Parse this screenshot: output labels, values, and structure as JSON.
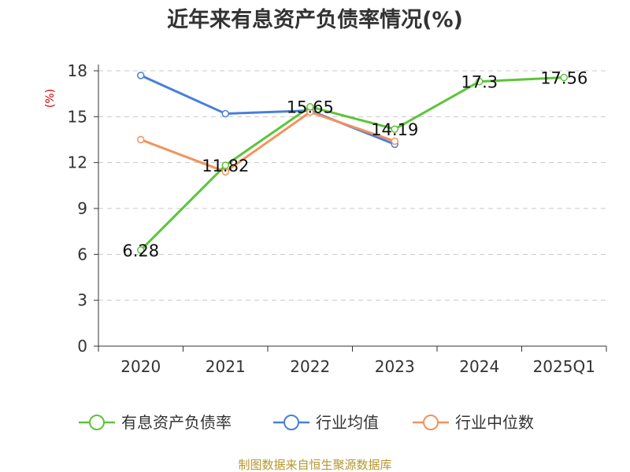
{
  "chart_data": {
    "type": "line",
    "title": "近年来有息资产负债率情况(%)",
    "ylabel": "(%)",
    "categories": [
      "2020",
      "2021",
      "2022",
      "2023",
      "2024",
      "2025Q1"
    ],
    "ylim": [
      0,
      18
    ],
    "yticks": [
      0,
      3,
      6,
      9,
      12,
      15,
      18
    ],
    "grid": true,
    "legend_position": "bottom",
    "series": [
      {
        "name": "有息资产负债率",
        "color": "#5cc43a",
        "values": [
          6.28,
          11.82,
          15.65,
          14.19,
          17.3,
          17.56
        ],
        "labels": [
          "6.28",
          "11.82",
          "15.65",
          "14.19",
          "17.3",
          "17.56"
        ]
      },
      {
        "name": "行业均值",
        "color": "#4a7fd9",
        "values": [
          17.7,
          15.2,
          15.4,
          13.2,
          null,
          null
        ]
      },
      {
        "name": "行业中位数",
        "color": "#f4925a",
        "values": [
          13.5,
          11.4,
          15.3,
          13.4,
          null,
          null
        ]
      }
    ]
  },
  "source": "制图数据来自恒生聚源数据库"
}
